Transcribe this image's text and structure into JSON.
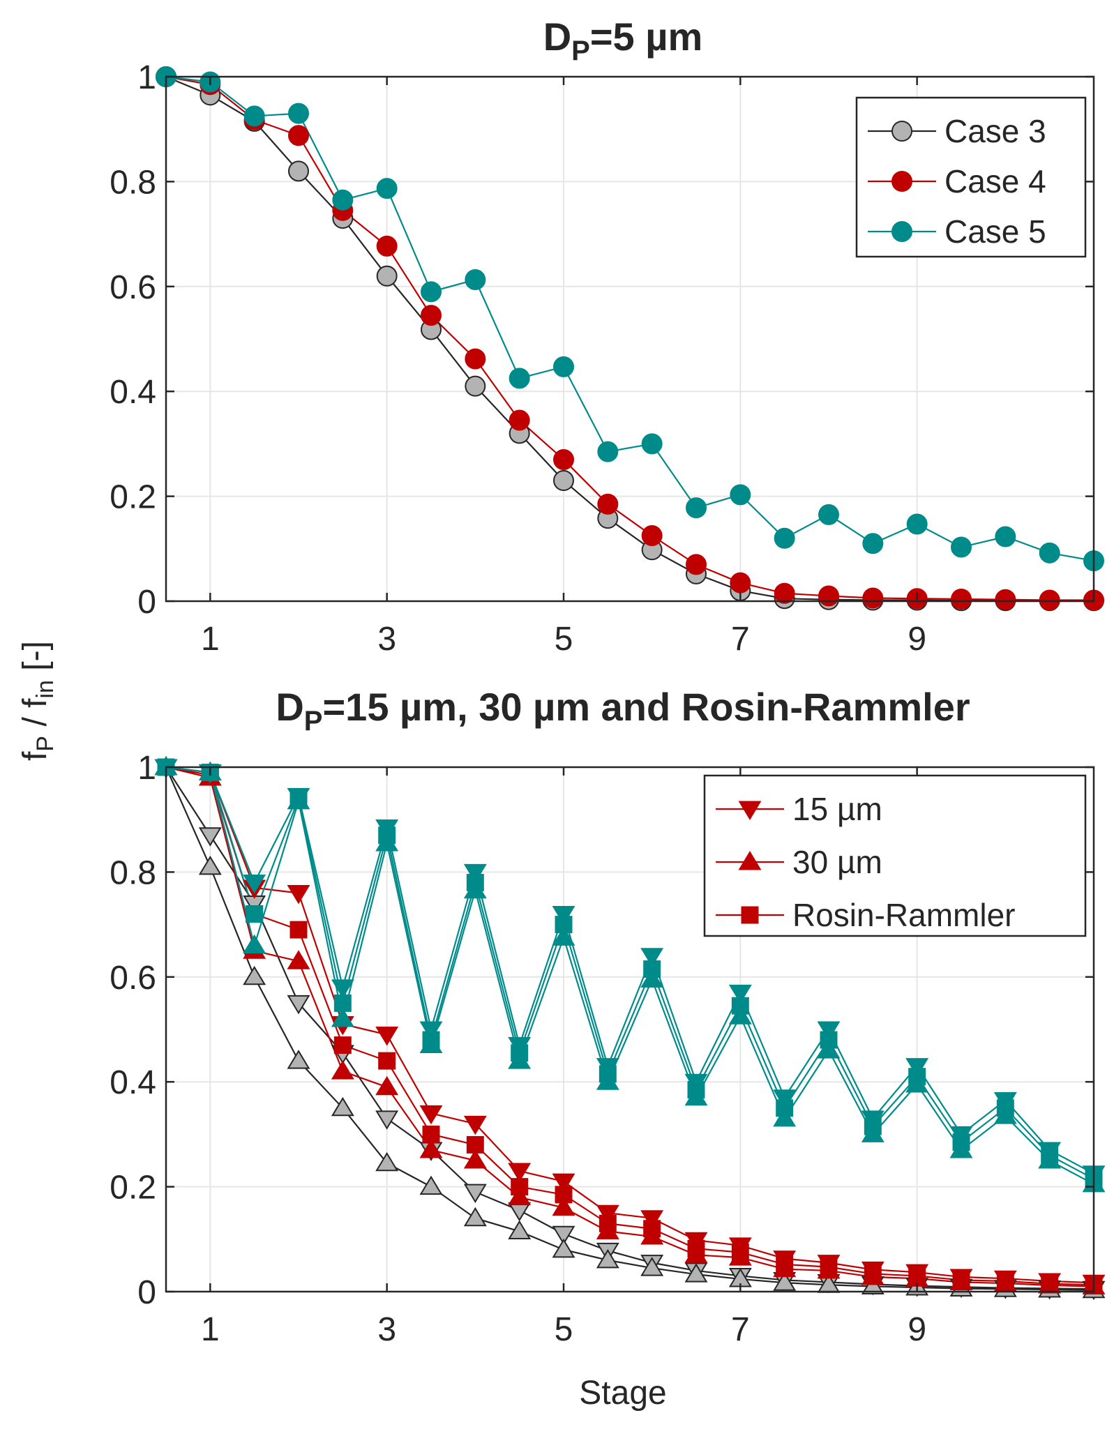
{
  "figure": {
    "ylabel": "fP / fin [-]",
    "ylabel_main": "f",
    "ylabel_sub1": "P",
    "ylabel_mid": " / f",
    "ylabel_sub2": "in",
    "ylabel_tail": "  [-]",
    "xlabel": "Stage"
  },
  "chart_data": [
    {
      "type": "line",
      "title": "DP=5 µm",
      "title_main": "D",
      "title_sub": "P",
      "title_rest": "=5 µm",
      "xlim": [
        0.5,
        11
      ],
      "ylim": [
        0,
        1
      ],
      "xticks": [
        1,
        3,
        5,
        7,
        9
      ],
      "yticks": [
        0,
        0.2,
        0.4,
        0.6,
        0.8,
        1
      ],
      "ytick_labels": [
        "0",
        "0.2",
        "0.4",
        "0.6",
        "0.8",
        "1"
      ],
      "x": [
        0.5,
        1,
        1.5,
        2,
        2.5,
        3,
        3.5,
        4,
        4.5,
        5,
        5.5,
        6,
        6.5,
        7,
        7.5,
        8,
        8.5,
        9,
        9.5,
        10,
        10.5,
        11
      ],
      "legend_position": "top-right",
      "series": [
        {
          "name": "Case 3",
          "color": "#b3b3b3",
          "line_color": "#262626",
          "marker": "circle",
          "values": [
            1.0,
            0.965,
            0.915,
            0.82,
            0.73,
            0.62,
            0.518,
            0.41,
            0.32,
            0.23,
            0.158,
            0.098,
            0.052,
            0.02,
            0.005,
            0.003,
            0.002,
            0.002,
            0.001,
            0.001,
            0.001,
            0.001
          ]
        },
        {
          "name": "Case 4",
          "color": "#c00000",
          "line_color": "#c00000",
          "marker": "circle",
          "values": [
            1.0,
            0.985,
            0.918,
            0.888,
            0.745,
            0.677,
            0.545,
            0.462,
            0.345,
            0.27,
            0.185,
            0.125,
            0.07,
            0.035,
            0.015,
            0.01,
            0.006,
            0.005,
            0.004,
            0.003,
            0.002,
            0.002
          ]
        },
        {
          "name": "Case 5",
          "color": "#008b8b",
          "line_color": "#008b8b",
          "marker": "circle",
          "values": [
            1.0,
            0.99,
            0.925,
            0.93,
            0.765,
            0.787,
            0.59,
            0.613,
            0.425,
            0.447,
            0.285,
            0.3,
            0.178,
            0.203,
            0.12,
            0.165,
            0.11,
            0.147,
            0.103,
            0.123,
            0.092,
            0.077
          ]
        }
      ]
    },
    {
      "type": "line",
      "title": "DP=15 µm, 30 µm and Rosin-Rammler",
      "title_main": "D",
      "title_sub": "P",
      "title_rest": "=15 µm, 30 µm and Rosin-Rammler",
      "xlim": [
        0.5,
        11
      ],
      "ylim": [
        0,
        1
      ],
      "xticks": [
        1,
        3,
        5,
        7,
        9
      ],
      "yticks": [
        0,
        0.2,
        0.4,
        0.6,
        0.8,
        1
      ],
      "ytick_labels": [
        "0",
        "0.2",
        "0.4",
        "0.6",
        "0.8",
        "1"
      ],
      "x": [
        0.5,
        1,
        1.5,
        2,
        2.5,
        3,
        3.5,
        4,
        4.5,
        5,
        5.5,
        6,
        6.5,
        7,
        7.5,
        8,
        8.5,
        9,
        9.5,
        10,
        10.5,
        11
      ],
      "legend_position": "top-right",
      "legend": [
        {
          "name": "15 µm",
          "marker": "triangle-down",
          "color": "#c00000"
        },
        {
          "name": "30 µm",
          "marker": "triangle-up",
          "color": "#c00000"
        },
        {
          "name": "Rosin-Rammler",
          "marker": "square",
          "color": "#c00000"
        }
      ],
      "series": [
        {
          "name": "15 µm",
          "group": "Case 3",
          "color": "#b3b3b3",
          "line_color": "#262626",
          "marker": "triangle-down",
          "values": [
            1.0,
            0.87,
            0.74,
            0.55,
            0.455,
            0.33,
            0.27,
            0.19,
            0.155,
            0.11,
            0.078,
            0.055,
            0.04,
            0.03,
            0.022,
            0.018,
            0.014,
            0.011,
            0.009,
            0.007,
            0.006,
            0.005
          ]
        },
        {
          "name": "30 µm",
          "group": "Case 3",
          "color": "#b3b3b3",
          "line_color": "#262626",
          "marker": "triangle-up",
          "values": [
            1.0,
            0.81,
            0.6,
            0.44,
            0.35,
            0.245,
            0.2,
            0.14,
            0.115,
            0.08,
            0.06,
            0.045,
            0.033,
            0.024,
            0.017,
            0.013,
            0.01,
            0.008,
            0.006,
            0.005,
            0.004,
            0.003
          ]
        },
        {
          "name": "15 µm",
          "group": "Case 4",
          "color": "#c00000",
          "line_color": "#c00000",
          "marker": "triangle-down",
          "values": [
            1.0,
            0.99,
            0.77,
            0.76,
            0.51,
            0.49,
            0.34,
            0.32,
            0.23,
            0.21,
            0.15,
            0.14,
            0.098,
            0.088,
            0.063,
            0.055,
            0.042,
            0.037,
            0.028,
            0.025,
            0.02,
            0.017
          ]
        },
        {
          "name": "30 µm",
          "group": "Case 4",
          "color": "#c00000",
          "line_color": "#c00000",
          "marker": "triangle-up",
          "values": [
            1.0,
            0.98,
            0.65,
            0.63,
            0.42,
            0.39,
            0.27,
            0.25,
            0.18,
            0.16,
            0.115,
            0.105,
            0.07,
            0.065,
            0.043,
            0.04,
            0.028,
            0.025,
            0.018,
            0.016,
            0.012,
            0.01
          ]
        },
        {
          "name": "Rosin-Rammler",
          "group": "Case 4",
          "color": "#c00000",
          "line_color": "#c00000",
          "marker": "square",
          "values": [
            1.0,
            0.985,
            0.72,
            0.69,
            0.47,
            0.44,
            0.3,
            0.28,
            0.2,
            0.185,
            0.13,
            0.12,
            0.082,
            0.075,
            0.052,
            0.047,
            0.034,
            0.03,
            0.022,
            0.02,
            0.015,
            0.013
          ]
        },
        {
          "name": "15 µm",
          "group": "Case 5",
          "color": "#008b8b",
          "line_color": "#008b8b",
          "marker": "triangle-down",
          "values": [
            1.0,
            0.99,
            0.78,
            0.945,
            0.58,
            0.885,
            0.5,
            0.8,
            0.47,
            0.72,
            0.43,
            0.64,
            0.4,
            0.57,
            0.37,
            0.5,
            0.33,
            0.43,
            0.3,
            0.365,
            0.27,
            0.225
          ]
        },
        {
          "name": "30 µm",
          "group": "Case 5",
          "color": "#008b8b",
          "line_color": "#008b8b",
          "marker": "triangle-up",
          "values": [
            1.0,
            0.99,
            0.66,
            0.935,
            0.52,
            0.855,
            0.47,
            0.765,
            0.44,
            0.675,
            0.4,
            0.595,
            0.37,
            0.525,
            0.33,
            0.46,
            0.3,
            0.395,
            0.27,
            0.335,
            0.25,
            0.205
          ]
        },
        {
          "name": "Rosin-Rammler",
          "group": "Case 5",
          "color": "#008b8b",
          "line_color": "#008b8b",
          "marker": "square",
          "values": [
            1.0,
            0.99,
            0.72,
            0.94,
            0.55,
            0.87,
            0.48,
            0.78,
            0.455,
            0.7,
            0.415,
            0.615,
            0.385,
            0.545,
            0.35,
            0.48,
            0.315,
            0.41,
            0.285,
            0.35,
            0.26,
            0.215
          ]
        }
      ]
    }
  ]
}
